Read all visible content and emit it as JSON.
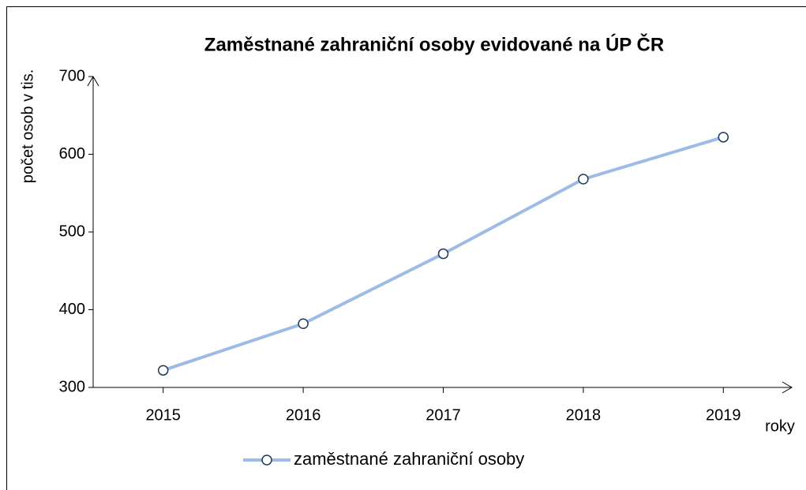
{
  "chart_data": {
    "type": "line",
    "title": "Zaměstnané zahraniční osoby evidované na ÚP ČR",
    "x_label": "roky",
    "y_label": "počet osob v tis.",
    "categories": [
      "2015",
      "2016",
      "2017",
      "2018",
      "2019"
    ],
    "series": [
      {
        "name": "zaměstnané zahraniční osoby",
        "color": "#9dbbe6",
        "values": [
          322,
          382,
          472,
          568,
          622
        ]
      }
    ],
    "ylim": [
      300,
      700
    ],
    "yticks": [
      300,
      400,
      500,
      600,
      700
    ],
    "legend": "bottom"
  }
}
